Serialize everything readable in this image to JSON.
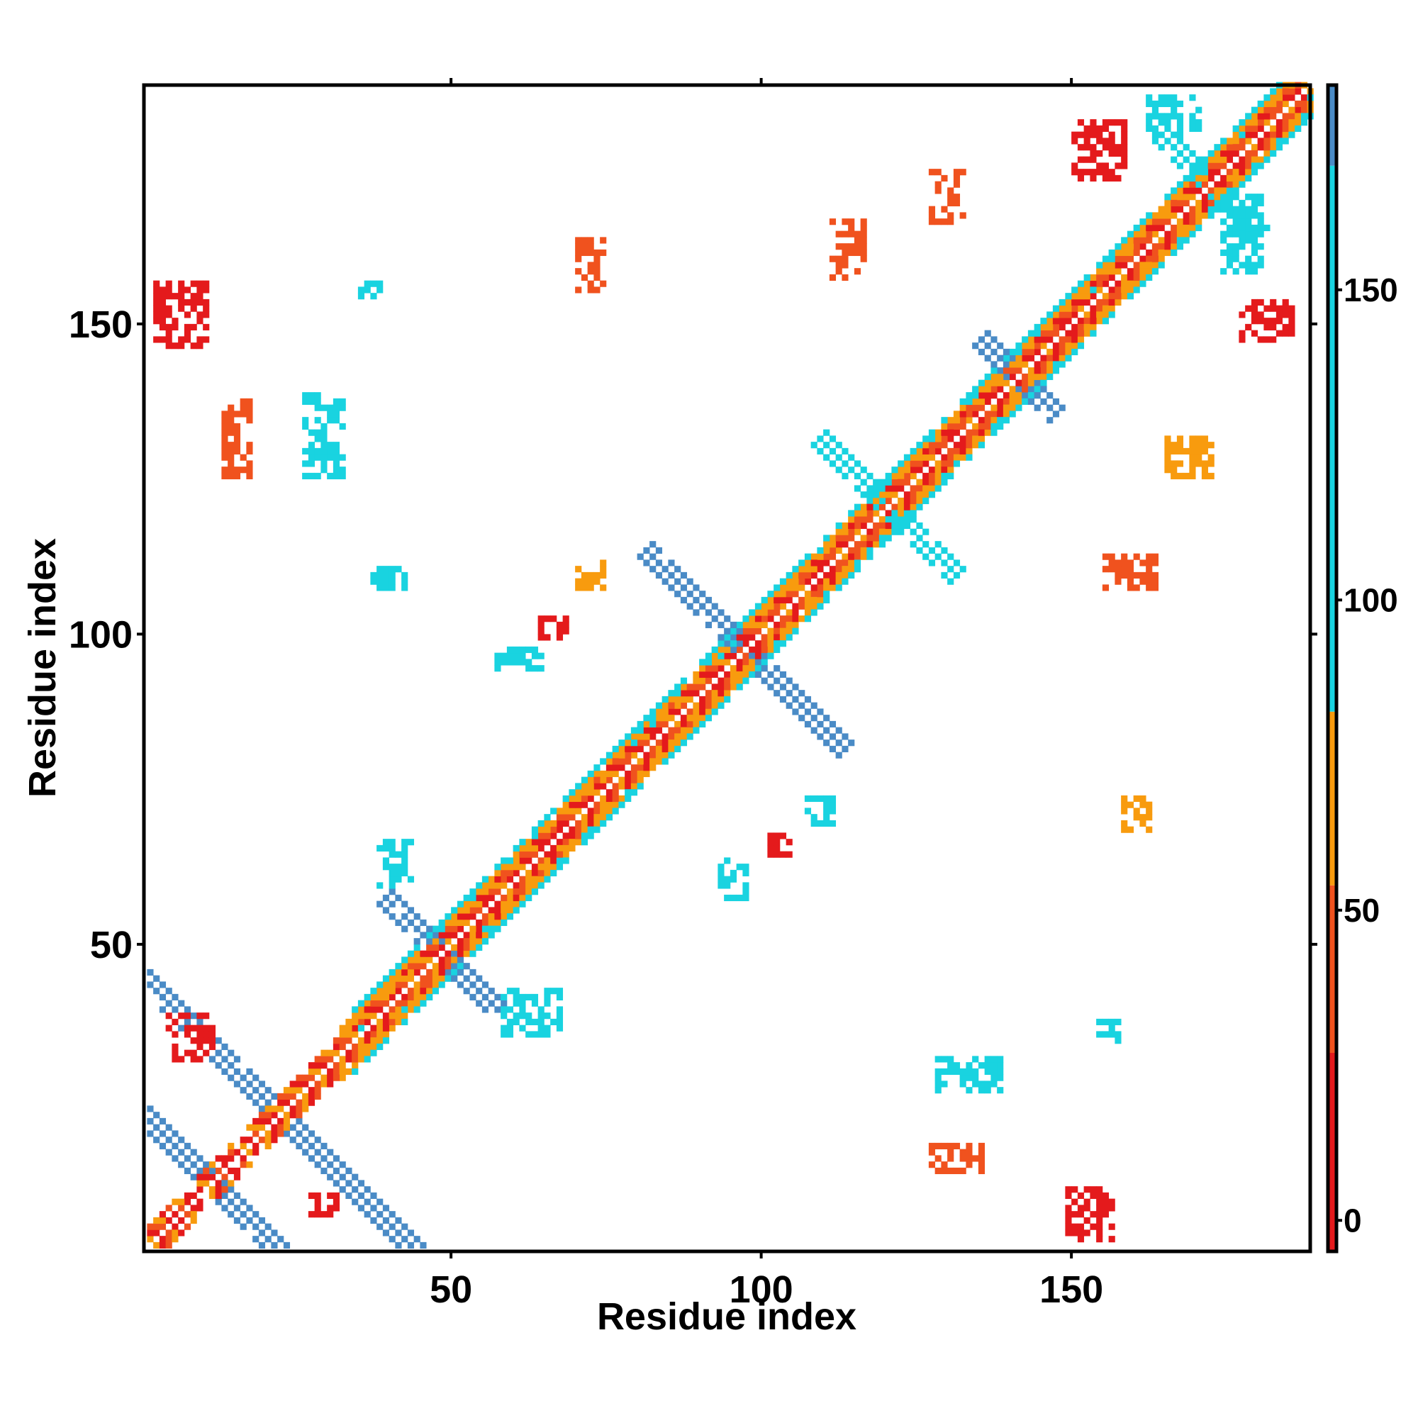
{
  "chart_data": {
    "type": "heatmap",
    "title": "",
    "xlabel": "Residue index",
    "ylabel": "Residue index",
    "xlim": [
      1,
      188
    ],
    "ylim": [
      1,
      188
    ],
    "x_ticks": [
      50,
      100,
      150
    ],
    "y_ticks": [
      50,
      100,
      150
    ],
    "x_tick_labels": [
      "50",
      "100",
      "150"
    ],
    "y_tick_labels": [
      "50",
      "100",
      "150"
    ],
    "grid": false,
    "colorbar": {
      "range": [
        -5,
        183
      ],
      "ticks": [
        0,
        50,
        100,
        150
      ],
      "tick_labels": [
        "0",
        "50",
        "100",
        "150"
      ],
      "bands": [
        {
          "from": -5,
          "to": 27,
          "color": "#e41a1c"
        },
        {
          "from": 27,
          "to": 54,
          "color": "#f0521e"
        },
        {
          "from": 54,
          "to": 82,
          "color": "#f89b0e"
        },
        {
          "from": 82,
          "to": 170,
          "color": "#19d3e0"
        },
        {
          "from": 170,
          "to": 183,
          "color": "#4a8bc6"
        }
      ],
      "top_color": "#ffffff"
    },
    "colors": {
      "red": "#e41a1c",
      "orange_red": "#f0521e",
      "orange": "#f89b0e",
      "cyan": "#19d3e0",
      "steel_blue": "#4a8bc6"
    },
    "regions": [
      {
        "type": "diag",
        "from": 1,
        "to": 188,
        "width": 1.2,
        "color": "red"
      },
      {
        "type": "diag",
        "from": 30,
        "to": 188,
        "width": 2.5,
        "color": "orange_red"
      },
      {
        "type": "diag",
        "from": 32,
        "to": 188,
        "width": 4,
        "color": "orange"
      },
      {
        "type": "diag",
        "from": 34,
        "to": 188,
        "width": 5.5,
        "color": "cyan"
      },
      {
        "type": "antidiag",
        "cx": 11,
        "cy": 11,
        "len": 18,
        "width": 2.2,
        "color": "steel_blue"
      },
      {
        "type": "antidiag",
        "cx": 22,
        "cy": 22,
        "len": 26,
        "width": 2.2,
        "color": "steel_blue"
      },
      {
        "type": "antidiag",
        "cx": 97,
        "cy": 97,
        "len": 16,
        "width": 2.2,
        "color": "steel_blue"
      },
      {
        "type": "antidiag",
        "cx": 120,
        "cy": 120,
        "len": 11,
        "width": 2.2,
        "color": "cyan"
      },
      {
        "type": "antidiag",
        "cx": 48,
        "cy": 48,
        "len": 9,
        "width": 2,
        "color": "steel_blue"
      },
      {
        "type": "antidiag",
        "cx": 172,
        "cy": 172,
        "len": 8,
        "width": 2,
        "color": "cyan"
      },
      {
        "type": "antidiag",
        "cx": 141,
        "cy": 141,
        "len": 6,
        "width": 2,
        "color": "steel_blue"
      },
      {
        "type": "blob",
        "x": [
          2,
          10
        ],
        "y": [
          146,
          156
        ],
        "color": "red"
      },
      {
        "type": "blob",
        "x": [
          149,
          156
        ],
        "y": [
          2,
          10
        ],
        "color": "red"
      },
      {
        "type": "blob",
        "x": [
          150,
          158
        ],
        "y": [
          173,
          182
        ],
        "color": "red"
      },
      {
        "type": "blob",
        "x": [
          177,
          185
        ],
        "y": [
          147,
          153
        ],
        "color": "red"
      },
      {
        "type": "blob",
        "x": [
          13,
          17
        ],
        "y": [
          125,
          137
        ],
        "color": "orange_red"
      },
      {
        "type": "blob",
        "x": [
          26,
          32
        ],
        "y": [
          125,
          138
        ],
        "color": "cyan"
      },
      {
        "type": "blob",
        "x": [
          35,
          38
        ],
        "y": [
          154,
          156
        ],
        "color": "cyan"
      },
      {
        "type": "blob",
        "x": [
          70,
          74
        ],
        "y": [
          155,
          163
        ],
        "color": "orange_red"
      },
      {
        "type": "blob",
        "x": [
          70,
          74
        ],
        "y": [
          107,
          111
        ],
        "color": "orange"
      },
      {
        "type": "blob",
        "x": [
          57,
          64
        ],
        "y": [
          94,
          97
        ],
        "color": "cyan"
      },
      {
        "type": "blob",
        "x": [
          38,
          43
        ],
        "y": [
          59,
          66
        ],
        "color": "cyan"
      },
      {
        "type": "blob",
        "x": [
          58,
          67
        ],
        "y": [
          35,
          42
        ],
        "color": "cyan"
      },
      {
        "type": "blob",
        "x": [
          107,
          111
        ],
        "y": [
          69,
          73
        ],
        "color": "cyan"
      },
      {
        "type": "blob",
        "x": [
          93,
          97
        ],
        "y": [
          57,
          63
        ],
        "color": "cyan"
      },
      {
        "type": "blob",
        "x": [
          128,
          138
        ],
        "y": [
          26,
          31
        ],
        "color": "cyan"
      },
      {
        "type": "blob",
        "x": [
          127,
          135
        ],
        "y": [
          13,
          17
        ],
        "color": "orange_red"
      },
      {
        "type": "blob",
        "x": [
          158,
          162
        ],
        "y": [
          68,
          73
        ],
        "color": "orange"
      },
      {
        "type": "blob",
        "x": [
          155,
          163
        ],
        "y": [
          107,
          112
        ],
        "color": "orange_red"
      },
      {
        "type": "blob",
        "x": [
          165,
          172
        ],
        "y": [
          125,
          131
        ],
        "color": "orange"
      },
      {
        "type": "blob",
        "x": [
          111,
          116
        ],
        "y": [
          157,
          166
        ],
        "color": "orange_red"
      },
      {
        "type": "blob",
        "x": [
          127,
          132
        ],
        "y": [
          166,
          174
        ],
        "color": "orange_red"
      },
      {
        "type": "blob",
        "x": [
          162,
          170
        ],
        "y": [
          180,
          186
        ],
        "color": "cyan"
      },
      {
        "type": "blob",
        "x": [
          174,
          180
        ],
        "y": [
          158,
          170
        ],
        "color": "cyan"
      },
      {
        "type": "blob",
        "x": [
          154,
          157
        ],
        "y": [
          34,
          37
        ],
        "color": "cyan"
      },
      {
        "type": "blob",
        "x": [
          4,
          11
        ],
        "y": [
          31,
          38
        ],
        "color": "red"
      },
      {
        "type": "blob",
        "x": [
          27,
          31
        ],
        "y": [
          6,
          9
        ],
        "color": "red"
      },
      {
        "type": "blob",
        "x": [
          64,
          68
        ],
        "y": [
          99,
          102
        ],
        "color": "red"
      },
      {
        "type": "blob",
        "x": [
          101,
          104
        ],
        "y": [
          64,
          67
        ],
        "color": "red"
      },
      {
        "type": "blob",
        "x": [
          37,
          42
        ],
        "y": [
          107,
          110
        ],
        "color": "cyan"
      }
    ]
  }
}
